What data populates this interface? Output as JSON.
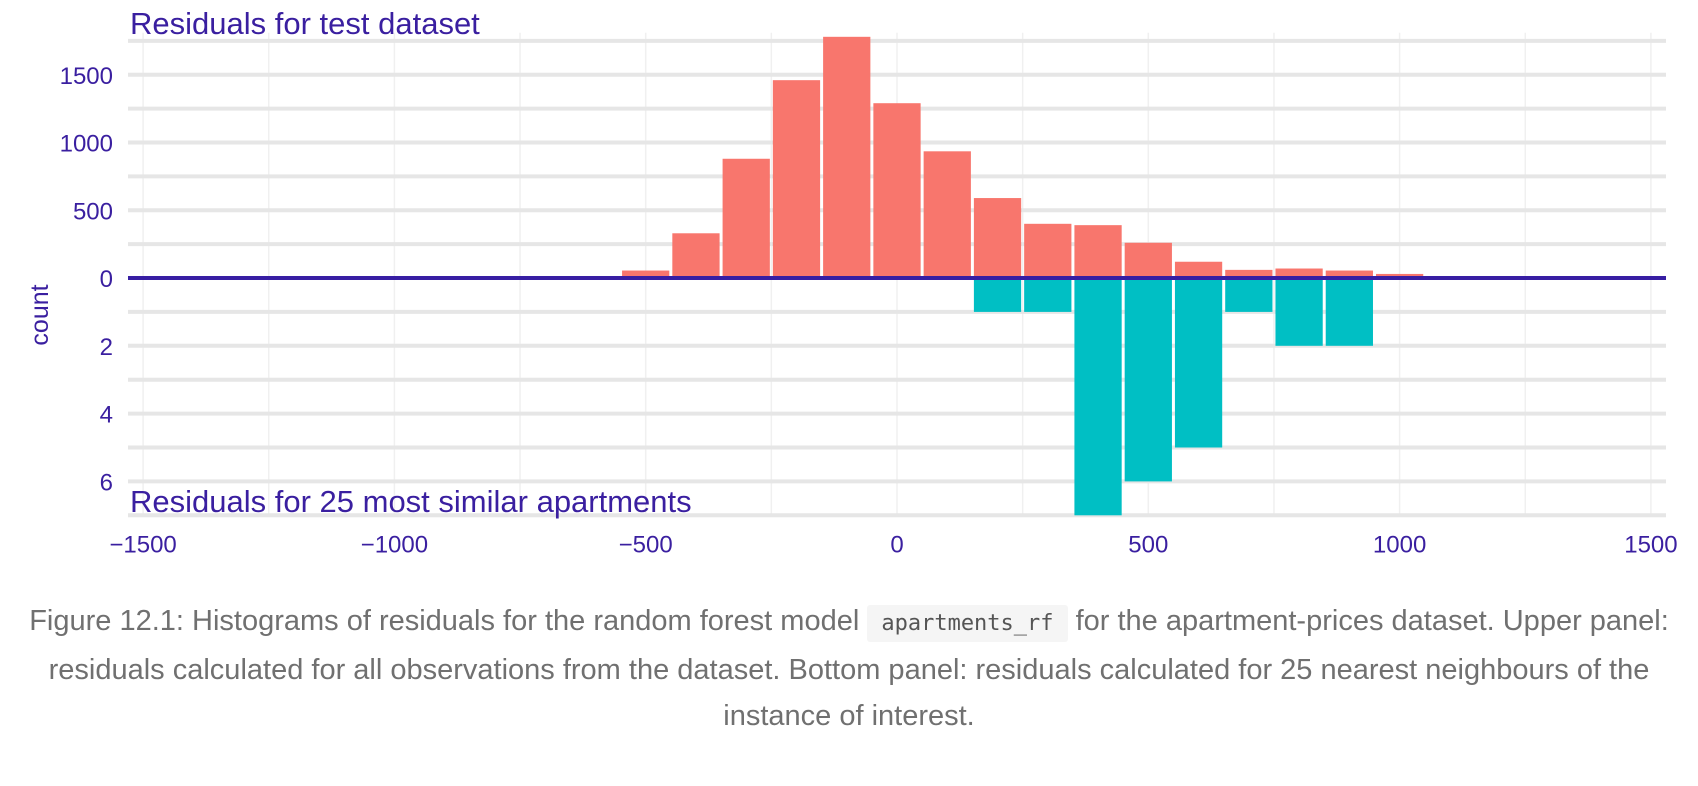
{
  "chart_data": {
    "type": "bar",
    "xlim": [
      -1530,
      1530
    ],
    "x_ticks": [
      -1500,
      -1000,
      -500,
      0,
      500,
      1000,
      1500
    ],
    "x_tick_labels": [
      "−1500",
      "−1000",
      "−500",
      "0",
      "500",
      "1000",
      "1500"
    ],
    "bin_width": 100,
    "ylabel": "count",
    "colors": {
      "upper": "#F8766D",
      "lower": "#00BFC4",
      "zero_line": "#371EA3",
      "text": "#371EA3"
    },
    "upper": {
      "title": "Residuals for test dataset",
      "ylim": [
        0,
        1780
      ],
      "y_ticks": [
        0,
        500,
        1000,
        1500
      ],
      "bins": [
        {
          "center": -500,
          "count": 55
        },
        {
          "center": -400,
          "count": 330
        },
        {
          "center": -300,
          "count": 880
        },
        {
          "center": -200,
          "count": 1460
        },
        {
          "center": -100,
          "count": 1780
        },
        {
          "center": 0,
          "count": 1290
        },
        {
          "center": 100,
          "count": 935
        },
        {
          "center": 200,
          "count": 590
        },
        {
          "center": 300,
          "count": 400
        },
        {
          "center": 400,
          "count": 390
        },
        {
          "center": 500,
          "count": 260
        },
        {
          "center": 600,
          "count": 120
        },
        {
          "center": 700,
          "count": 60
        },
        {
          "center": 800,
          "count": 70
        },
        {
          "center": 900,
          "count": 55
        },
        {
          "center": 1000,
          "count": 30
        }
      ]
    },
    "lower": {
      "title": "Residuals for 25 most similar apartments",
      "ylim": [
        0,
        7
      ],
      "y_ticks": [
        0,
        2,
        4,
        6
      ],
      "bins": [
        {
          "center": 200,
          "count": 1
        },
        {
          "center": 300,
          "count": 1
        },
        {
          "center": 400,
          "count": 7
        },
        {
          "center": 500,
          "count": 6
        },
        {
          "center": 600,
          "count": 5
        },
        {
          "center": 700,
          "count": 1
        },
        {
          "center": 800,
          "count": 2
        },
        {
          "center": 900,
          "count": 2
        }
      ]
    }
  },
  "caption": {
    "prefix": "Figure 12.1: Histograms of residuals for the random forest model ",
    "code": "apartments_rf",
    "suffix": " for the apartment-prices dataset. Upper panel: residuals calculated for all observations from the dataset. Bottom panel: residuals calculated for 25 nearest neighbours of the instance of interest."
  }
}
